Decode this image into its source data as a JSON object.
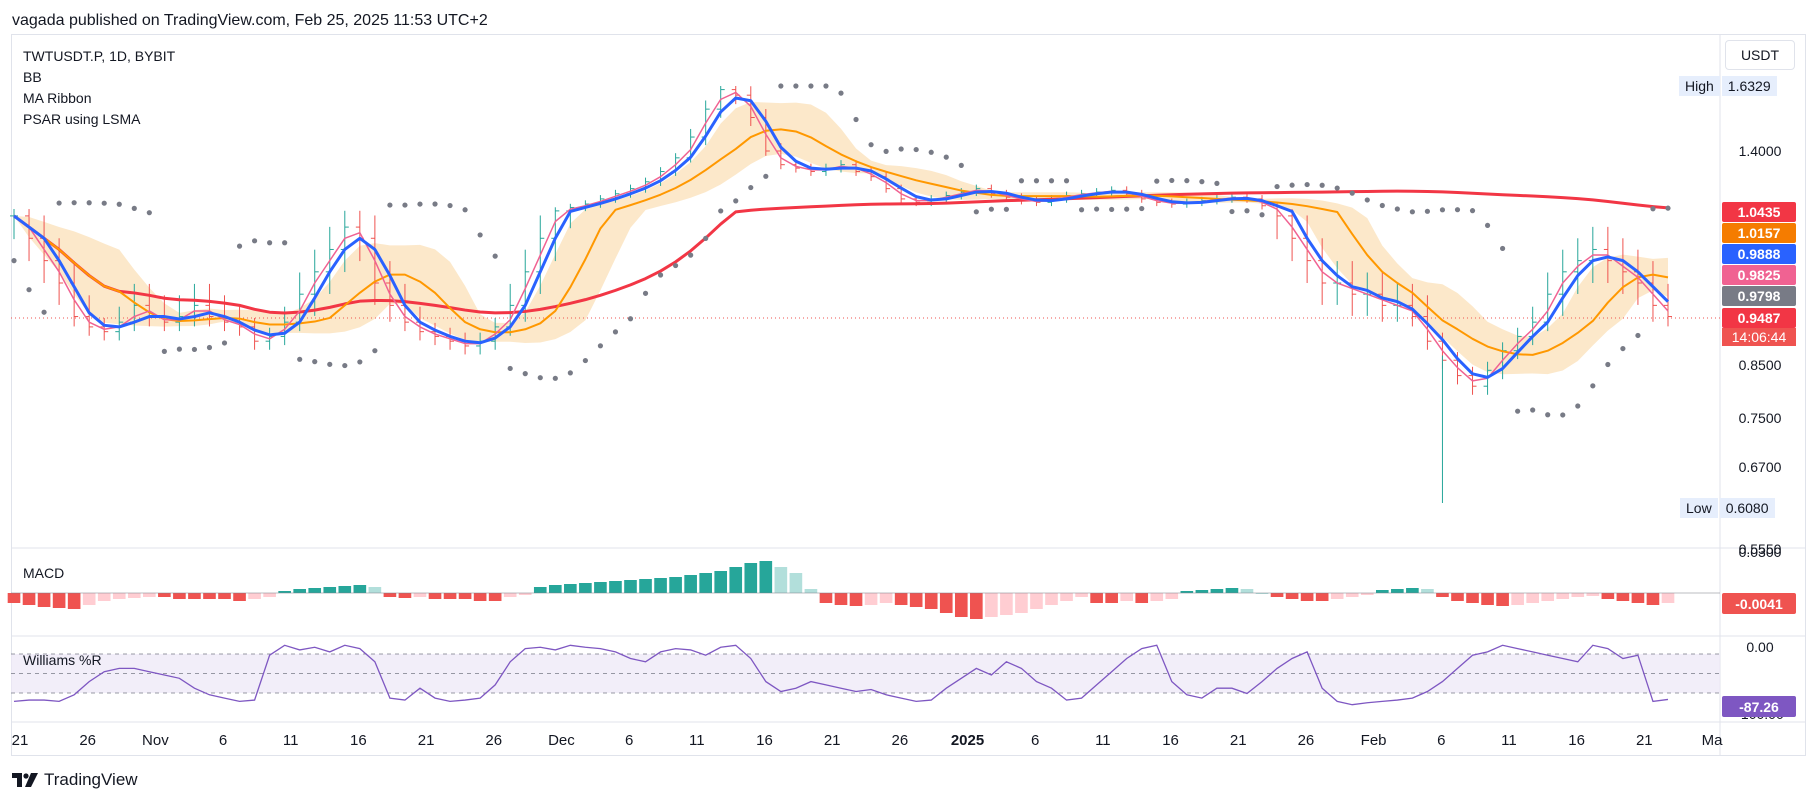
{
  "header": {
    "publish_line": "vagada published on TradingView.com, Feb 25, 2025 11:53 UTC+2"
  },
  "legend": {
    "symbol": "TWTUSDT.P, 1D, BYBIT",
    "ind1": "BB",
    "ind2": "MA Ribbon",
    "ind3": "PSAR using LSMA"
  },
  "axis": {
    "currency": "USDT"
  },
  "high": {
    "label": "High",
    "value": "1.6329"
  },
  "low": {
    "label": "Low",
    "value": "0.6080"
  },
  "panes": {
    "macd_label": "MACD",
    "wr_label": "Williams %R",
    "macd_value": "-0.0041",
    "wr_value": "-87.26"
  },
  "footer": {
    "brand": "TradingView"
  },
  "chart_data": {
    "type": "candlestick",
    "symbol": "TWTUSDT.P",
    "interval": "1D",
    "exchange": "BYBIT",
    "price_axis_ticks": [
      "1.4000",
      "0.8500",
      "0.7500",
      "0.6700",
      "0.5550"
    ],
    "time_axis_ticks": [
      "21",
      "26",
      "Nov",
      "6",
      "11",
      "16",
      "21",
      "26",
      "Dec",
      "6",
      "11",
      "16",
      "21",
      "26",
      "2025",
      "6",
      "11",
      "16",
      "21",
      "26",
      "Feb",
      "6",
      "11",
      "16",
      "21",
      "Ma"
    ],
    "price_tags": [
      {
        "value": "1.0435",
        "color": "#f23645"
      },
      {
        "value": "1.0157",
        "color": "#f57c00"
      },
      {
        "value": "0.9888",
        "color": "#2962ff"
      },
      {
        "value": "0.9825",
        "color": "#f06292"
      },
      {
        "value": "0.9798",
        "color": "#787b86"
      },
      {
        "value": "0.9487",
        "color": "#f23645"
      }
    ],
    "countdown": "14:06:44",
    "last_price": 0.9487,
    "macd_axis": [
      "0.0300"
    ],
    "wr_axis": [
      "0.00",
      "-100.00"
    ],
    "colors": {
      "up": "#26a69a",
      "down": "#ef5350",
      "bb_fill": "#fbe2bd",
      "ribbon_fast": "#2962ff",
      "ribbon_mid": "#f06292",
      "ribbon_slow": "#ff9800",
      "ma_long": "#f23645",
      "psar": "#787b86",
      "macd_up": "#26a69a",
      "macd_down": "#ef5350",
      "wr_line": "#7e57c2"
    },
    "closes": [
      1.04,
      1.02,
      1.0,
      0.98,
      0.95,
      0.93,
      0.92,
      0.94,
      0.96,
      0.95,
      0.94,
      0.95,
      0.96,
      0.95,
      0.94,
      0.93,
      0.9,
      0.91,
      0.94,
      0.97,
      0.99,
      1.01,
      1.03,
      1.02,
      0.98,
      0.96,
      0.94,
      0.92,
      0.91,
      0.9,
      0.89,
      0.9,
      0.93,
      0.96,
      0.99,
      1.02,
      1.05,
      1.07,
      1.09,
      1.12,
      1.15,
      1.18,
      1.22,
      1.28,
      1.36,
      1.45,
      1.55,
      1.62,
      1.6,
      1.52,
      1.4,
      1.32,
      1.3,
      1.28,
      1.3,
      1.32,
      1.28,
      1.25,
      1.18,
      1.12,
      1.1,
      1.12,
      1.14,
      1.16,
      1.18,
      1.15,
      1.13,
      1.11,
      1.1,
      1.12,
      1.14,
      1.15,
      1.16,
      1.17,
      1.15,
      1.12,
      1.1,
      1.09,
      1.1,
      1.11,
      1.12,
      1.13,
      1.12,
      1.08,
      1.04,
      1.02,
      1.0,
      0.98,
      0.98,
      0.97,
      0.97,
      0.96,
      0.96,
      0.95,
      0.9,
      0.86,
      0.83,
      0.81,
      0.84,
      0.88,
      0.91,
      0.94,
      0.97,
      0.99,
      1.0,
      1.01,
      1.0,
      0.99,
      0.98,
      0.96,
      0.95
    ],
    "macd_hist": [
      -0.01,
      -0.012,
      -0.014,
      -0.015,
      -0.016,
      -0.012,
      -0.008,
      -0.006,
      -0.005,
      -0.004,
      -0.004,
      -0.006,
      -0.006,
      -0.006,
      -0.006,
      -0.008,
      -0.006,
      -0.004,
      0.002,
      0.004,
      0.005,
      0.006,
      0.007,
      0.008,
      0.006,
      -0.004,
      -0.005,
      -0.004,
      -0.006,
      -0.006,
      -0.006,
      -0.008,
      -0.008,
      -0.004,
      -0.002,
      0.006,
      0.008,
      0.009,
      0.01,
      0.011,
      0.012,
      0.013,
      0.014,
      0.015,
      0.016,
      0.018,
      0.02,
      0.022,
      0.026,
      0.03,
      0.032,
      0.026,
      0.02,
      0.004,
      -0.01,
      -0.012,
      -0.013,
      -0.012,
      -0.01,
      -0.012,
      -0.014,
      -0.016,
      -0.02,
      -0.024,
      -0.026,
      -0.024,
      -0.022,
      -0.02,
      -0.016,
      -0.012,
      -0.008,
      -0.004,
      -0.01,
      -0.01,
      -0.008,
      -0.01,
      -0.008,
      -0.006,
      0.002,
      0.003,
      0.004,
      0.005,
      0.004,
      0.0,
      -0.004,
      -0.006,
      -0.008,
      -0.008,
      -0.006,
      -0.004,
      -0.002,
      0.003,
      0.004,
      0.005,
      0.004,
      -0.004,
      -0.008,
      -0.01,
      -0.012,
      -0.013,
      -0.012,
      -0.01,
      -0.008,
      -0.006,
      -0.004,
      -0.003,
      -0.006,
      -0.008,
      -0.01,
      -0.012,
      -0.01
    ],
    "wr": [
      -90,
      -88,
      -88,
      -90,
      -80,
      -60,
      -45,
      -40,
      -40,
      -45,
      -50,
      -55,
      -70,
      -80,
      -85,
      -90,
      -88,
      -20,
      -5,
      -12,
      -8,
      -15,
      -5,
      -10,
      -30,
      -85,
      -88,
      -70,
      -85,
      -90,
      -88,
      -85,
      -65,
      -30,
      -10,
      -8,
      -12,
      -5,
      -8,
      -10,
      -15,
      -25,
      -30,
      -15,
      -10,
      -12,
      -20,
      -8,
      -5,
      -25,
      -60,
      -75,
      -70,
      -60,
      -65,
      -70,
      -75,
      -72,
      -80,
      -85,
      -90,
      -88,
      -70,
      -55,
      -40,
      -50,
      -30,
      -40,
      -60,
      -70,
      -88,
      -85,
      -65,
      -45,
      -25,
      -10,
      -5,
      -60,
      -80,
      -85,
      -70,
      -70,
      -78,
      -60,
      -40,
      -25,
      -15,
      -70,
      -90,
      -95,
      -92,
      -90,
      -88,
      -85,
      -75,
      -60,
      -40,
      -20,
      -15,
      -5,
      -10,
      -15,
      -20,
      -25,
      -30,
      -5,
      -10,
      -25,
      -20,
      -90,
      -87
    ]
  }
}
